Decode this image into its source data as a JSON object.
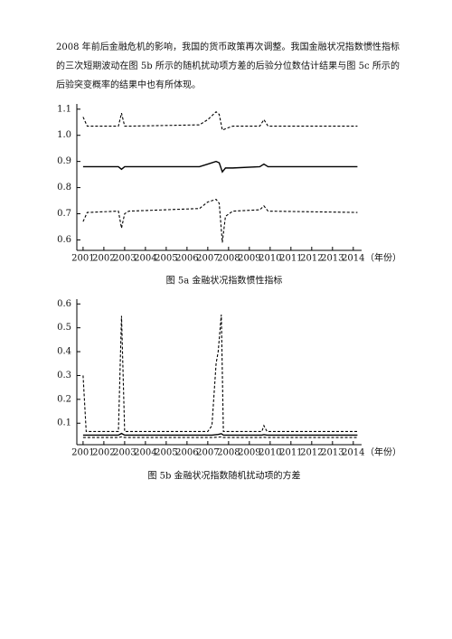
{
  "paragraph": "2008 年前后金融危机的影响，我国的货币政策再次调整。我国金融状况指数惯性指标的三次短期波动在图 5b 所示的随机扰动项方差的后验分位数估计结果与图 5c 所示的后验突变概率的结果中也有所体现。",
  "chart_data": [
    {
      "type": "line",
      "caption": "图 5a  金融状况指数惯性指标",
      "xlabel": "（年份）",
      "x": [
        2001.0,
        2001.2,
        2002.7,
        2002.85,
        2003.0,
        2003.2,
        2006.6,
        2007.0,
        2007.4,
        2007.55,
        2007.7,
        2007.85,
        2008.2,
        2009.5,
        2009.7,
        2009.9,
        2014.2
      ],
      "series": [
        {
          "color": "#000000",
          "dashed": true,
          "values": [
            1.07,
            1.035,
            1.035,
            1.085,
            1.035,
            1.035,
            1.04,
            1.06,
            1.09,
            1.08,
            1.02,
            1.025,
            1.035,
            1.035,
            1.06,
            1.035,
            1.035
          ]
        },
        {
          "color": "#000000",
          "dashed": false,
          "values": [
            0.88,
            0.88,
            0.88,
            0.87,
            0.88,
            0.88,
            0.88,
            0.89,
            0.9,
            0.895,
            0.86,
            0.875,
            0.875,
            0.88,
            0.89,
            0.88,
            0.88
          ]
        },
        {
          "color": "#000000",
          "dashed": true,
          "values": [
            0.67,
            0.705,
            0.71,
            0.645,
            0.7,
            0.71,
            0.72,
            0.745,
            0.755,
            0.74,
            0.59,
            0.69,
            0.71,
            0.715,
            0.73,
            0.71,
            0.705
          ]
        }
      ],
      "xlim": [
        2000.7,
        2014.4
      ],
      "xticks": [
        2001,
        2002,
        2003,
        2004,
        2005,
        2006,
        2007,
        2008,
        2009,
        2010,
        2011,
        2012,
        2013,
        2014
      ],
      "ylim": [
        0.56,
        1.12
      ],
      "yticks": [
        0.6,
        0.7,
        0.8,
        0.9,
        {
          "value": 1,
          "label": "1.0"
        },
        1.1
      ]
    },
    {
      "type": "line",
      "caption": "图 5b  金融状况指数随机扰动项的方差",
      "xlabel": "（年份）",
      "x": [
        2001.0,
        2001.15,
        2002.7,
        2002.85,
        2003.0,
        2007.0,
        2007.2,
        2007.4,
        2007.5,
        2007.65,
        2007.75,
        2009.6,
        2009.7,
        2009.85,
        2014.2
      ],
      "series": [
        {
          "color": "#000000",
          "dashed": true,
          "values": [
            0.3,
            0.065,
            0.065,
            0.55,
            0.065,
            0.065,
            0.09,
            0.35,
            0.4,
            0.555,
            0.065,
            0.065,
            0.09,
            0.065,
            0.065
          ]
        },
        {
          "color": "#000000",
          "dashed": false,
          "values": [
            0.05,
            0.05,
            0.05,
            0.057,
            0.05,
            0.05,
            0.05,
            0.052,
            0.053,
            0.056,
            0.05,
            0.05,
            0.052,
            0.05,
            0.05
          ]
        },
        {
          "color": "#000000",
          "dashed": true,
          "values": [
            0.04,
            0.04,
            0.04,
            0.043,
            0.04,
            0.04,
            0.04,
            0.041,
            0.041,
            0.043,
            0.04,
            0.04,
            0.041,
            0.04,
            0.04
          ]
        }
      ],
      "xlim": [
        2000.7,
        2014.4
      ],
      "xticks": [
        2001,
        2002,
        2003,
        2004,
        2005,
        2006,
        2007,
        2008,
        2009,
        2010,
        2011,
        2012,
        2013,
        2014
      ],
      "ylim": [
        0.01,
        0.62
      ],
      "yticks": [
        0.1,
        0.2,
        0.3,
        0.4,
        0.5,
        0.6
      ]
    }
  ]
}
